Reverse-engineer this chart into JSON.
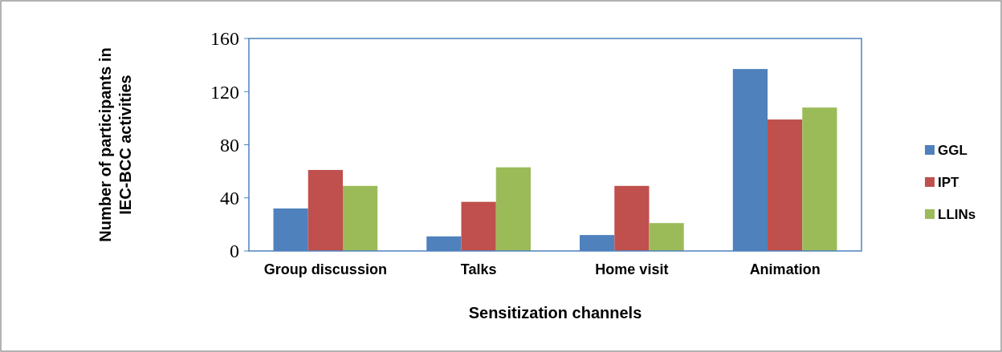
{
  "chart_data": {
    "type": "bar",
    "xlabel": "Sensitization channels",
    "ylabel": "Number of participants in IEC-BCC activities",
    "categories": [
      "Group discussion",
      "Talks",
      "Home visit",
      "Animation"
    ],
    "series": [
      {
        "name": "GGL",
        "color": "#4f81bd",
        "values": [
          32,
          11,
          12,
          137
        ]
      },
      {
        "name": "IPT",
        "color": "#c0504d",
        "values": [
          61,
          37,
          49,
          99
        ]
      },
      {
        "name": "LLINs",
        "color": "#9bbb59",
        "values": [
          49,
          63,
          21,
          108
        ]
      }
    ],
    "ylim": [
      0,
      160
    ],
    "yticks": [
      0,
      40,
      80,
      120,
      160
    ],
    "grid": false,
    "legend": "right"
  }
}
